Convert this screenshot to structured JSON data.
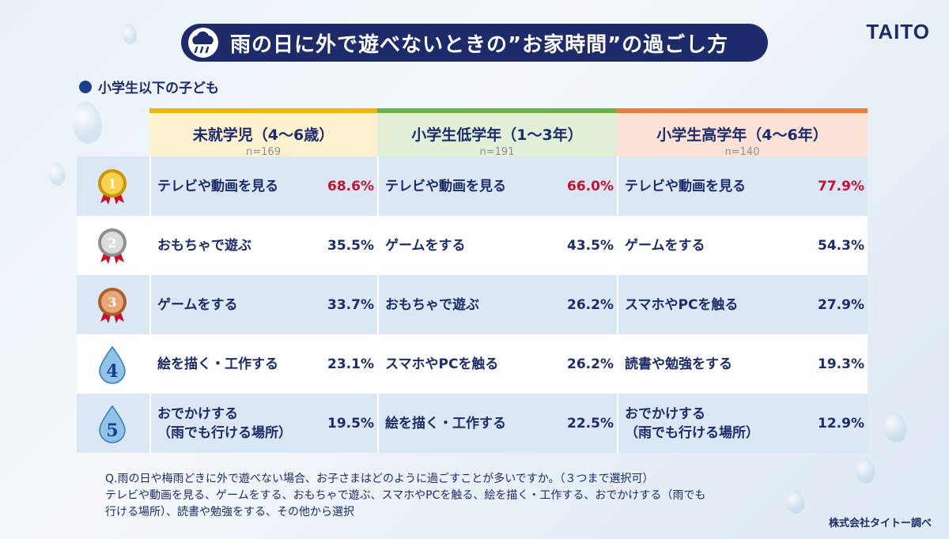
{
  "title": "雨の日に外で遊べないときの”お家時間”の過ごし方",
  "logo": "TAITO",
  "subtitle": "小学生以下の子ども",
  "columns": [
    {
      "name": "未就学児（4〜6歳）",
      "n": "n=169",
      "color": "#f2b705",
      "bg": "#fdf1cf"
    },
    {
      "name": "小学生低学年（1〜3年）",
      "n": "n=191",
      "color": "#6bb04a",
      "bg": "#e3f0d8"
    },
    {
      "name": "小学生高学年（4〜6年）",
      "n": "n=140",
      "color": "#ee7a3b",
      "bg": "#fbe2d4"
    }
  ],
  "rows": [
    {
      "rank": "1",
      "rank_icon": "gold-medal-icon",
      "cells": [
        {
          "label": "テレビや動画を見る",
          "pct": "68.6%",
          "highlight": true
        },
        {
          "label": "テレビや動画を見る",
          "pct": "66.0%",
          "highlight": true
        },
        {
          "label": "テレビや動画を見る",
          "pct": "77.9%",
          "highlight": true
        }
      ]
    },
    {
      "rank": "2",
      "rank_icon": "silver-medal-icon",
      "cells": [
        {
          "label": "おもちゃで遊ぶ",
          "pct": "35.5%"
        },
        {
          "label": "ゲームをする",
          "pct": "43.5%"
        },
        {
          "label": "ゲームをする",
          "pct": "54.3%"
        }
      ]
    },
    {
      "rank": "3",
      "rank_icon": "bronze-medal-icon",
      "cells": [
        {
          "label": "ゲームをする",
          "pct": "33.7%"
        },
        {
          "label": "おもちゃで遊ぶ",
          "pct": "26.2%"
        },
        {
          "label": "スマホやPCを触る",
          "pct": "27.9%"
        }
      ]
    },
    {
      "rank": "4",
      "rank_icon": "water-drop-icon",
      "cells": [
        {
          "label": "絵を描く・工作する",
          "pct": "23.1%"
        },
        {
          "label": "スマホやPCを触る",
          "pct": "26.2%"
        },
        {
          "label": "読書や勉強をする",
          "pct": "19.3%"
        }
      ]
    },
    {
      "rank": "5",
      "rank_icon": "water-drop-icon",
      "cells": [
        {
          "label": "おでかけする\n（雨でも行ける場所）",
          "pct": "19.5%"
        },
        {
          "label": "絵を描く・工作する",
          "pct": "22.5%"
        },
        {
          "label": "おでかけする\n（雨でも行ける場所）",
          "pct": "12.9%"
        }
      ]
    }
  ],
  "question_lines": [
    "Q.雨の日や梅雨どきに外で遊べない場合、お子さまはどのように過ごすことが多いですか。（３つまで選択可）",
    "テレビや動画を見る、ゲームをする、おもちゃで遊ぶ、スマホやPCを触る、絵を描く・工作する、おでかけする（雨でも",
    "行ける場所）、読書や勉強をする、その他から選択"
  ],
  "credit": "株式会社タイトー調べ",
  "chart_data": {
    "type": "table",
    "title": "雨の日に外で遊べないときの”お家時間”の過ごし方",
    "subtitle": "小学生以下の子ども",
    "series": [
      {
        "name": "未就学児（4〜6歳）",
        "n": 169,
        "ranking": [
          [
            "テレビや動画を見る",
            68.6
          ],
          [
            "おもちゃで遊ぶ",
            35.5
          ],
          [
            "ゲームをする",
            33.7
          ],
          [
            "絵を描く・工作する",
            23.1
          ],
          [
            "おでかけする（雨でも行ける場所）",
            19.5
          ]
        ]
      },
      {
        "name": "小学生低学年（1〜3年）",
        "n": 191,
        "ranking": [
          [
            "テレビや動画を見る",
            66.0
          ],
          [
            "ゲームをする",
            43.5
          ],
          [
            "おもちゃで遊ぶ",
            26.2
          ],
          [
            "スマホやPCを触る",
            26.2
          ],
          [
            "絵を描く・工作する",
            22.5
          ]
        ]
      },
      {
        "name": "小学生高学年（4〜6年）",
        "n": 140,
        "ranking": [
          [
            "テレビや動画を見る",
            77.9
          ],
          [
            "ゲームをする",
            54.3
          ],
          [
            "スマホやPCを触る",
            27.9
          ],
          [
            "読書や勉強をする",
            19.3
          ],
          [
            "おでかけする（雨でも行ける場所）",
            12.9
          ]
        ]
      }
    ]
  }
}
